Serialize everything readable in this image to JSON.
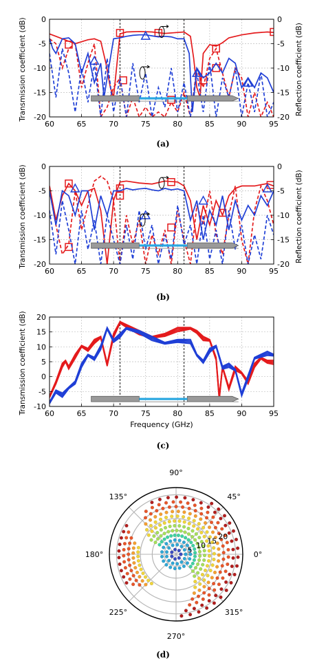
{
  "chart_data": [
    {
      "type": "line",
      "panel_label": "(a)",
      "xlim": [
        60,
        95
      ],
      "ylim": [
        -20,
        0
      ],
      "xticks": [
        60,
        65,
        70,
        75,
        80,
        85,
        90,
        95
      ],
      "yticks": [
        -20,
        -15,
        -10,
        -5,
        0
      ],
      "ylabel": "Transmission coefficient (dB)",
      "ylabel_right": "Reflection coefficient (dB)",
      "ytick_labels_right": [
        "-20",
        "-15",
        "-10",
        "-5",
        "0"
      ],
      "band_markers_x": [
        71,
        81
      ],
      "colors": {
        "red": "#e41a1c",
        "blue": "#1f3fd6"
      },
      "series": [
        {
          "color": "red",
          "style": "solid",
          "marker": "square",
          "x": [
            60,
            61,
            62,
            63,
            64,
            65,
            66,
            67,
            68,
            68.8,
            69.5,
            70,
            71,
            72,
            74,
            76,
            78,
            80,
            81,
            82,
            82.5,
            83,
            83.5,
            84,
            85,
            86,
            87,
            88,
            90,
            92,
            94,
            95
          ],
          "y": [
            -3,
            -3.5,
            -4,
            -4.5,
            -5,
            -4.6,
            -4.2,
            -4,
            -4.5,
            -9,
            -14,
            -16,
            -3,
            -2.6,
            -2.5,
            -2.6,
            -2.9,
            -2.7,
            -2.6,
            -3.5,
            -8,
            -14,
            -16,
            -7,
            -5.2,
            -5.5,
            -4.8,
            -3.8,
            -3.2,
            -2.8,
            -2.6,
            -2.7
          ],
          "marker_x": [
            63,
            71,
            77,
            86,
            95
          ],
          "marker_y": [
            -5.2,
            -2.8,
            -2.8,
            -6,
            -2.6
          ]
        },
        {
          "color": "red",
          "style": "dashed",
          "marker": "square",
          "x": [
            60,
            61,
            62,
            63,
            64,
            65,
            66,
            67,
            68,
            69,
            70,
            71,
            72,
            73,
            74,
            75,
            76,
            77,
            78,
            79,
            80,
            81,
            82,
            83,
            84,
            85,
            86,
            87,
            88,
            89,
            90,
            91,
            92,
            93,
            94,
            95
          ],
          "y": [
            -4,
            -5,
            -10,
            -6,
            -5,
            -14,
            -9,
            -5,
            -20,
            -18,
            -14,
            -12,
            -20,
            -16,
            -20,
            -18,
            -20,
            -19,
            -20,
            -17,
            -19,
            -15,
            -20,
            -10,
            -14,
            -8,
            -6,
            -11,
            -16,
            -10,
            -12,
            -20,
            -15,
            -20,
            -17,
            -20
          ],
          "marker_x": [
            71.5,
            79,
            84,
            86
          ],
          "marker_y": [
            -12.5,
            -16.5,
            -12.5,
            -10
          ]
        },
        {
          "color": "blue",
          "style": "solid",
          "marker": "triangle",
          "x": [
            60,
            60.5,
            61,
            62,
            63,
            64,
            65,
            66,
            67,
            68,
            68.5,
            69,
            70,
            71,
            72,
            73,
            74,
            75,
            76,
            77,
            78,
            79,
            80,
            81,
            81.8,
            82.3,
            83,
            84,
            85,
            86,
            87,
            88,
            89,
            90,
            91,
            92,
            93,
            94,
            95
          ],
          "y": [
            -4,
            -6,
            -7,
            -4,
            -3.8,
            -5,
            -11,
            -7,
            -13,
            -9,
            -16,
            -12,
            -4,
            -3.8,
            -3.5,
            -3.3,
            -3.2,
            -3.2,
            -3.4,
            -3.6,
            -3.5,
            -3.6,
            -4,
            -4,
            -7,
            -19,
            -10,
            -12,
            -11,
            -9,
            -11,
            -8,
            -9,
            -14,
            -12,
            -14,
            -11,
            -12,
            -15
          ],
          "marker_x": [
            67,
            75,
            83,
            91
          ],
          "marker_y": [
            -8.5,
            -3.4,
            -11,
            -13
          ]
        },
        {
          "color": "blue",
          "style": "dashed",
          "marker": "none",
          "x": [
            60,
            61,
            62,
            63,
            64,
            65,
            66,
            67,
            68,
            69,
            70,
            71,
            72,
            73,
            74,
            75,
            76,
            77,
            78,
            79,
            80,
            81,
            82,
            83,
            84,
            85,
            86,
            87,
            88,
            89,
            90,
            91,
            92,
            93,
            94,
            95
          ],
          "y": [
            -7,
            -16,
            -6,
            -11,
            -19,
            -10,
            -17,
            -9,
            -20,
            -8,
            -19,
            -12,
            -20,
            -9,
            -17,
            -11,
            -20,
            -14,
            -18,
            -10,
            -19,
            -13,
            -20,
            -11,
            -19,
            -9,
            -20,
            -12,
            -16,
            -10,
            -20,
            -13,
            -19,
            -11,
            -20,
            -17
          ]
        }
      ]
    },
    {
      "type": "line",
      "panel_label": "(b)",
      "xlim": [
        60,
        95
      ],
      "ylim": [
        -20,
        0
      ],
      "xticks": [
        60,
        65,
        70,
        75,
        80,
        85,
        90,
        95
      ],
      "yticks": [
        -20,
        -15,
        -10,
        -5,
        0
      ],
      "ylabel": "Transmission coefficient (dB)",
      "ylabel_right": "Reflection coefficient (dB)",
      "ytick_labels_right": [
        "-20",
        "-15",
        "-10",
        "-5",
        "0"
      ],
      "band_markers_x": [
        71,
        81
      ],
      "colors": {
        "red": "#e41a1c",
        "blue": "#1f3fd6"
      },
      "series": [
        {
          "color": "red",
          "style": "solid",
          "marker": "square",
          "x": [
            60,
            61,
            62,
            63,
            64,
            65,
            66,
            67,
            68,
            69,
            70,
            71,
            72,
            74,
            76,
            78,
            80,
            81,
            82,
            83,
            84,
            85,
            86,
            87,
            88,
            89,
            90,
            92,
            94,
            95
          ],
          "y": [
            -4,
            -11,
            -6,
            -3.5,
            -5,
            -8,
            -5,
            -4.5,
            -9,
            -20,
            -7,
            -3.2,
            -3,
            -3.4,
            -3.6,
            -3,
            -3.2,
            -4,
            -7,
            -15,
            -8,
            -12,
            -7,
            -10,
            -6,
            -4.5,
            -4,
            -4,
            -3.5,
            -4
          ],
          "marker_x": [
            63,
            71,
            79,
            87,
            94.5
          ],
          "marker_y": [
            -3.5,
            -4.5,
            -3.2,
            -9.5,
            -3.8
          ]
        },
        {
          "color": "red",
          "style": "dashed",
          "marker": "square",
          "x": [
            60,
            61,
            62,
            63,
            64,
            65,
            66,
            67,
            68,
            69,
            70,
            71,
            72,
            73,
            74,
            75,
            76,
            77,
            78,
            79,
            80,
            81,
            82,
            83,
            84,
            85,
            86,
            87,
            88,
            89,
            90,
            91,
            92,
            93,
            94,
            95
          ],
          "y": [
            -5,
            -12,
            -18,
            -16,
            -5,
            -13,
            -8,
            -3,
            -2,
            -3,
            -7,
            -20,
            -10,
            -16,
            -11,
            -20,
            -14,
            -18,
            -13,
            -20,
            -9,
            -15,
            -20,
            -8,
            -12,
            -5,
            -14,
            -18,
            -10,
            -4,
            -15,
            -20,
            -9,
            -4,
            -7,
            -12
          ],
          "marker_x": [
            63,
            71,
            79
          ],
          "marker_y": [
            -16.5,
            -6,
            -12.5
          ]
        },
        {
          "color": "blue",
          "style": "solid",
          "marker": "triangle",
          "x": [
            60,
            61,
            62,
            63,
            64,
            65,
            66,
            67,
            68,
            69,
            70,
            71,
            72,
            73,
            74,
            75,
            76,
            77,
            78,
            79,
            80,
            81,
            82,
            83,
            84,
            85,
            86,
            87,
            88,
            89,
            90,
            91,
            92,
            93,
            94,
            95
          ],
          "y": [
            -5,
            -12,
            -5,
            -6,
            -10,
            -5,
            -5,
            -13,
            -6,
            -10,
            -5,
            -5,
            -4.5,
            -4.8,
            -4.6,
            -4.5,
            -4.8,
            -5,
            -4.5,
            -4.8,
            -4.6,
            -5,
            -11,
            -7,
            -15,
            -9,
            -12,
            -6,
            -13,
            -7,
            -11,
            -8,
            -10,
            -6,
            -8,
            -5
          ],
          "marker_x": [
            64,
            75,
            84,
            94
          ],
          "marker_y": [
            -4.5,
            -10,
            -7,
            -4.5
          ]
        },
        {
          "color": "blue",
          "style": "dashed",
          "marker": "none",
          "x": [
            60,
            61,
            62,
            63,
            64,
            65,
            66,
            67,
            68,
            69,
            70,
            71,
            72,
            73,
            74,
            75,
            76,
            77,
            78,
            79,
            80,
            81,
            82,
            83,
            84,
            85,
            86,
            87,
            88,
            89,
            90,
            91,
            92,
            93,
            94,
            95
          ],
          "y": [
            -9,
            -18,
            -7,
            -13,
            -20,
            -9,
            -17,
            -11,
            -20,
            -10,
            -15,
            -20,
            -12,
            -19,
            -9,
            -17,
            -12,
            -20,
            -14,
            -19,
            -8,
            -16,
            -12,
            -20,
            -10,
            -19,
            -13,
            -20,
            -9,
            -17,
            -12,
            -20,
            -14,
            -19,
            -10,
            -14
          ]
        }
      ]
    },
    {
      "type": "line",
      "panel_label": "(c)",
      "xlim": [
        60,
        95
      ],
      "ylim": [
        -10,
        20
      ],
      "xticks": [
        60,
        65,
        70,
        75,
        80,
        85,
        90,
        95
      ],
      "yticks": [
        -10,
        -5,
        0,
        5,
        10,
        15,
        20
      ],
      "xlabel": "Frequency (GHz)",
      "ylabel": "Transmission coefficient (dB)",
      "band_markers_x": [
        71,
        81
      ],
      "colors": {
        "red": "#e41a1c",
        "blue": "#1f3fd6"
      },
      "series": [
        {
          "color": "red",
          "style": "solid",
          "marker": "none",
          "x": [
            60,
            61,
            62,
            62.5,
            63,
            64,
            65,
            66,
            67,
            68,
            69,
            70,
            71,
            72,
            74,
            76,
            78,
            80,
            82,
            83,
            84,
            85,
            86,
            86.5,
            87,
            88,
            89,
            90,
            91,
            92,
            93,
            94,
            95
          ],
          "y": [
            -7,
            -2,
            4,
            5,
            3,
            7,
            10,
            9,
            12,
            13,
            4,
            14,
            18,
            17,
            15,
            13,
            14,
            16,
            16,
            15,
            13,
            12,
            6,
            -7,
            3,
            -4,
            3,
            1,
            -2,
            4,
            6,
            5,
            5
          ]
        },
        {
          "color": "blue",
          "style": "solid",
          "marker": "none",
          "x": [
            60,
            61,
            62,
            63,
            64,
            65,
            66,
            67,
            68,
            69,
            70,
            71,
            72,
            74,
            76,
            78,
            80,
            82,
            83,
            84,
            85,
            86,
            87,
            88,
            89,
            90,
            91,
            92,
            93,
            94,
            95
          ],
          "y": [
            -9,
            -5,
            -6,
            -4,
            -2,
            4,
            7,
            6,
            10,
            16,
            12,
            14,
            16,
            15,
            13,
            11,
            12,
            12,
            7,
            5,
            9,
            10,
            3,
            4,
            2,
            -6,
            0,
            6,
            7,
            8,
            7
          ]
        }
      ]
    },
    {
      "type": "scatter",
      "panel_label": "(d)",
      "polar": true,
      "angle_labels": [
        "90°",
        "45°",
        "0°",
        "315°",
        "270°",
        "225°",
        "180°",
        "135°"
      ],
      "angle_label_deg": [
        90,
        45,
        0,
        315,
        270,
        225,
        180,
        135
      ],
      "radial_ticks": [
        5,
        10,
        15,
        20
      ],
      "rmax": 28,
      "colormap": [
        "#3b4cc0",
        "#2fa7d6",
        "#3fd3a3",
        "#a6e05a",
        "#f0d53a",
        "#f5a031",
        "#e8562a",
        "#b21e1e"
      ],
      "point_groups": [
        {
          "radius": 2,
          "theta_from": 0,
          "theta_to": 360,
          "count": 8
        },
        {
          "radius": 4,
          "theta_from": 0,
          "theta_to": 360,
          "count": 14
        },
        {
          "radius": 6,
          "theta_from": 0,
          "theta_to": 360,
          "count": 20
        },
        {
          "radius": 8,
          "theta_from": -40,
          "theta_to": 150,
          "count": 18
        },
        {
          "radius": 10,
          "theta_from": -45,
          "theta_to": 150,
          "count": 20
        },
        {
          "radius": 12,
          "theta_from": -50,
          "theta_to": 150,
          "count": 22
        },
        {
          "radius": 14,
          "theta_from": -55,
          "theta_to": 145,
          "count": 24
        },
        {
          "radius": 16,
          "theta_from": -60,
          "theta_to": 140,
          "count": 24
        },
        {
          "radius": 18,
          "theta_from": -65,
          "theta_to": 135,
          "count": 26
        },
        {
          "radius": 20,
          "theta_from": -70,
          "theta_to": 130,
          "count": 26
        },
        {
          "radius": 22,
          "theta_from": -75,
          "theta_to": 125,
          "count": 26
        },
        {
          "radius": 24,
          "theta_from": -80,
          "theta_to": 115,
          "count": 24
        },
        {
          "radius": 26,
          "theta_from": -85,
          "theta_to": 55,
          "count": 18
        },
        {
          "radius": 24,
          "theta_from": 150,
          "theta_to": 210,
          "count": 10
        },
        {
          "radius": 22,
          "theta_from": 155,
          "theta_to": 215,
          "count": 10
        },
        {
          "radius": 20,
          "theta_from": 160,
          "theta_to": 220,
          "count": 10
        },
        {
          "radius": 18,
          "theta_from": 165,
          "theta_to": 225,
          "count": 10
        },
        {
          "radius": 16,
          "theta_from": 170,
          "theta_to": 230,
          "count": 10
        }
      ]
    }
  ]
}
